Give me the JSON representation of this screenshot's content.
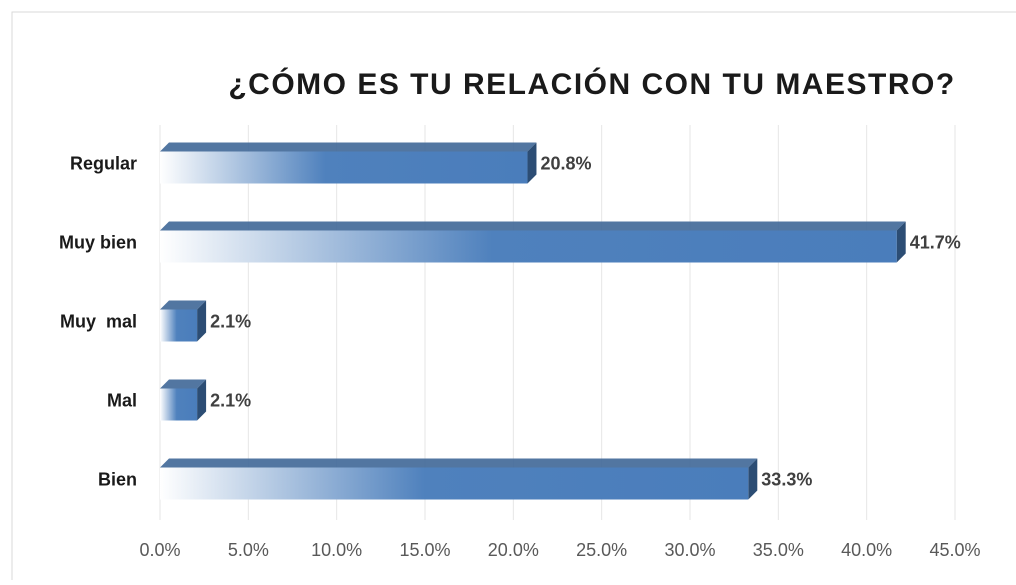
{
  "chart_data": {
    "type": "bar",
    "orientation": "horizontal",
    "title": "¿CÓMO ES TU RELACIÓN CON TU MAESTRO?",
    "categories": [
      "Regular",
      "Muy bien",
      "Muy  mal",
      "Mal",
      "Bien"
    ],
    "values": [
      20.8,
      41.7,
      2.1,
      2.1,
      33.3
    ],
    "value_labels": [
      "20.8%",
      "41.7%",
      "2.1%",
      "2.1%",
      "33.3%"
    ],
    "color": "#4f81bd",
    "xlim": [
      0,
      45
    ],
    "xticks": [
      {
        "value": 0,
        "label": "0.0%"
      },
      {
        "value": 5,
        "label": "5.0%"
      },
      {
        "value": 10,
        "label": "10.0%"
      },
      {
        "value": 15,
        "label": "15.0%"
      },
      {
        "value": 20,
        "label": "20.0%"
      },
      {
        "value": 25,
        "label": "25.0%"
      },
      {
        "value": 30,
        "label": "30.0%"
      },
      {
        "value": 35,
        "label": "35.0%"
      },
      {
        "value": 40,
        "label": "40.0%"
      },
      {
        "value": 45,
        "label": "45.0%"
      }
    ],
    "grid": true
  }
}
